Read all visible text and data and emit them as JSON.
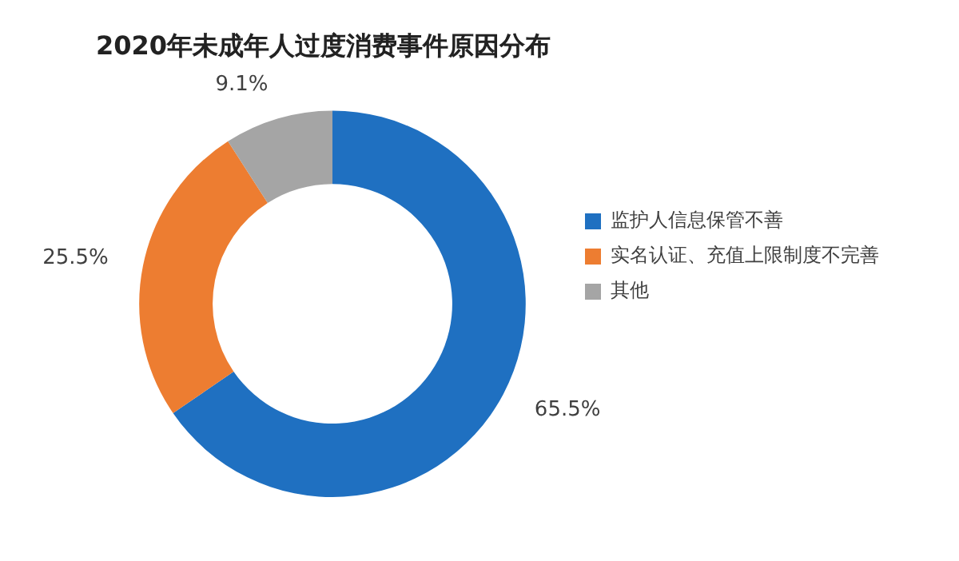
{
  "chart_data": {
    "type": "donut",
    "title": "2020年未成年人过度消费事件原因分布",
    "categories": [
      "监护人信息保管不善",
      "实名认证、充值上限制度不完善",
      "其他"
    ],
    "values": [
      65.5,
      25.5,
      9.1
    ],
    "colors": [
      "#1f70c1",
      "#ed7d31",
      "#a5a5a5"
    ],
    "value_labels": [
      "65.5%",
      "25.5%",
      "9.1%"
    ],
    "legend": "right"
  }
}
